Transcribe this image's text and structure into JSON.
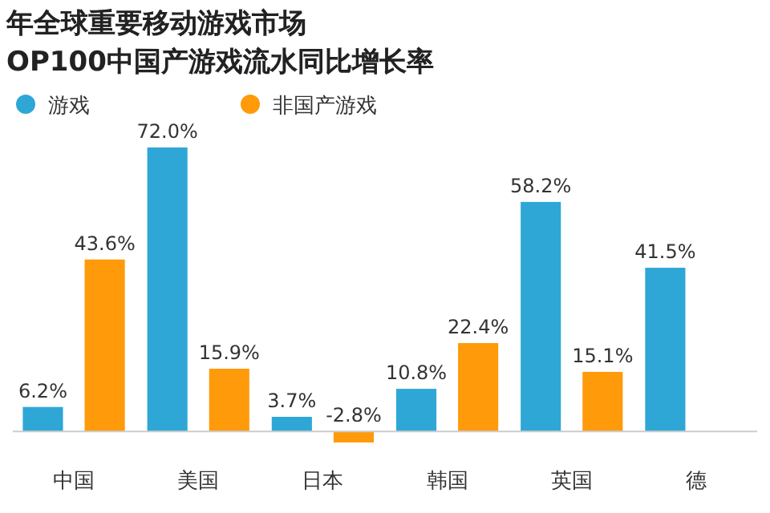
{
  "chart_data": {
    "type": "bar",
    "title": "年全球重要移动游戏市场",
    "subtitle": "OP100中国产游戏流水同比增长率",
    "categories": [
      "中国",
      "美国",
      "日本",
      "韩国",
      "英国",
      "德"
    ],
    "series": [
      {
        "name": "游戏",
        "color": "#2ea7d6",
        "values": [
          6.2,
          72.0,
          3.7,
          10.8,
          58.2,
          41.5
        ],
        "value_labels": [
          "6.2%",
          "72.0%",
          "3.7%",
          "10.8%",
          "58.2%",
          "41.5%"
        ]
      },
      {
        "name": "非国产游戏",
        "color": "#ff9a0a",
        "values": [
          43.6,
          15.9,
          -2.8,
          22.4,
          15.1,
          null
        ],
        "value_labels": [
          "43.6%",
          "15.9%",
          "-2.8%",
          "22.4%",
          "15.1%",
          null
        ]
      }
    ],
    "legend": "top left"
  }
}
